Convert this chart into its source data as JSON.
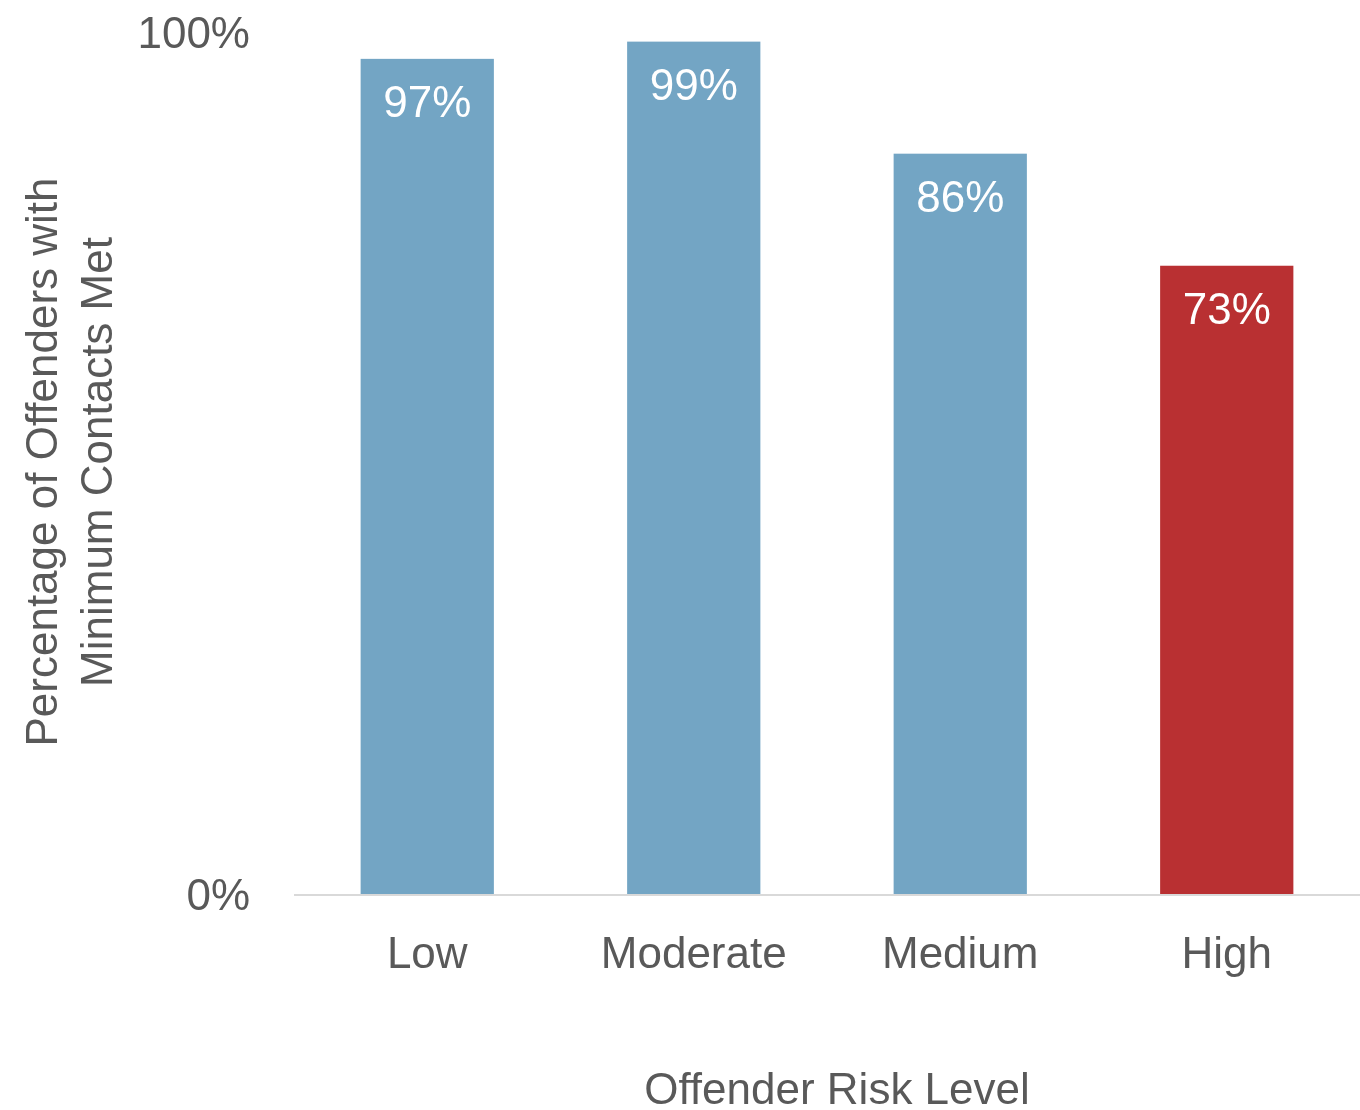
{
  "chart_data": {
    "type": "bar",
    "xlabel": "Offender Risk Level",
    "ylabel": "Percentage of Offenders with\nMinimum Contacts Met",
    "categories": [
      "Low",
      "Moderate",
      "Medium",
      "High"
    ],
    "values": [
      97,
      99,
      86,
      73
    ],
    "colors": [
      "#73a5c4",
      "#73a5c4",
      "#73a5c4",
      "#b93032"
    ],
    "value_labels": [
      "97%",
      "99%",
      "86%",
      "73%"
    ],
    "ylim": [
      0,
      100
    ],
    "yticks": [
      {
        "value": 0,
        "label": "0%"
      },
      {
        "value": 100,
        "label": "100%"
      }
    ],
    "grid": false
  }
}
